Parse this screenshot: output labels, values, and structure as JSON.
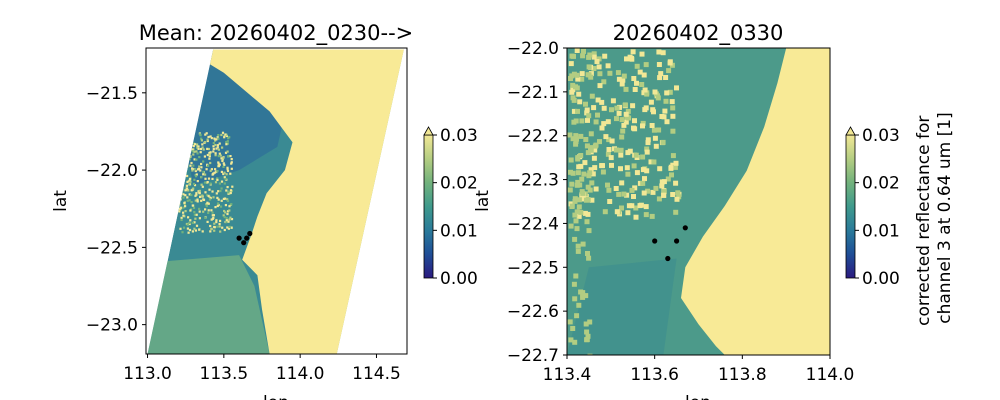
{
  "chart_data": [
    {
      "type": "heatmap",
      "title": "Mean: 20260402_0230-->",
      "xlabel": "lon",
      "ylabel": "lat",
      "xlim": [
        112.99,
        114.7
      ],
      "ylim": [
        -23.19,
        -21.21
      ],
      "xticks": [
        113.0,
        113.5,
        114.0,
        114.5
      ],
      "xtick_labels": [
        "113.0",
        "113.5",
        "114.0",
        "114.5"
      ],
      "yticks": [
        -21.5,
        -22.0,
        -22.5,
        -23.0
      ],
      "ytick_labels": [
        "−21.5",
        "−22.0",
        "−22.5",
        "−23.0"
      ],
      "swath_corners_lonlat": [
        [
          113.43,
          -21.22
        ],
        [
          114.68,
          -21.22
        ],
        [
          114.24,
          -23.19
        ],
        [
          113.0,
          -23.19
        ]
      ],
      "coast_lonlat": [
        [
          113.25,
          -21.22
        ],
        [
          113.5,
          -21.37
        ],
        [
          113.8,
          -21.62
        ],
        [
          113.95,
          -21.82
        ],
        [
          113.9,
          -22.0
        ],
        [
          113.78,
          -22.15
        ],
        [
          113.72,
          -22.3
        ],
        [
          113.68,
          -22.42
        ],
        [
          113.62,
          -22.58
        ],
        [
          113.72,
          -22.68
        ],
        [
          113.75,
          -22.9
        ],
        [
          113.8,
          -23.19
        ]
      ],
      "markers": [
        [
          113.6,
          -22.44
        ],
        [
          113.63,
          -22.47
        ],
        [
          113.65,
          -22.44
        ],
        [
          113.67,
          -22.41
        ]
      ],
      "colorbar": {
        "vmin": 0.0,
        "vmax": 0.03,
        "ticks": [
          "0.00",
          "0.01",
          "0.02",
          "0.03"
        ],
        "extend": "max",
        "label": ""
      }
    },
    {
      "type": "heatmap",
      "title": "20260402_0330",
      "xlabel": "lon",
      "ylabel": "lat",
      "xlim": [
        113.4,
        114.0
      ],
      "ylim": [
        -22.7,
        -22.0
      ],
      "xticks": [
        113.4,
        113.6,
        113.8,
        114.0
      ],
      "xtick_labels": [
        "113.4",
        "113.6",
        "113.8",
        "114.0"
      ],
      "yticks": [
        -22.0,
        -22.1,
        -22.2,
        -22.3,
        -22.4,
        -22.5,
        -22.6,
        -22.7
      ],
      "ytick_labels": [
        "−22.0",
        "−22.1",
        "−22.2",
        "−22.3",
        "−22.4",
        "−22.5",
        "−22.6",
        "−22.7"
      ],
      "coast_lonlat": [
        [
          113.9,
          -22.0
        ],
        [
          113.88,
          -22.08
        ],
        [
          113.85,
          -22.18
        ],
        [
          113.81,
          -22.28
        ],
        [
          113.76,
          -22.36
        ],
        [
          113.71,
          -22.43
        ],
        [
          113.67,
          -22.5
        ],
        [
          113.66,
          -22.57
        ],
        [
          113.7,
          -22.63
        ],
        [
          113.74,
          -22.68
        ],
        [
          113.76,
          -22.7
        ]
      ],
      "markers": [
        [
          113.6,
          -22.44
        ],
        [
          113.63,
          -22.48
        ],
        [
          113.65,
          -22.44
        ],
        [
          113.67,
          -22.41
        ]
      ],
      "colorbar": {
        "vmin": 0.0,
        "vmax": 0.03,
        "ticks": [
          "0.00",
          "0.01",
          "0.02",
          "0.03"
        ],
        "extend": "max",
        "label": "corrected reflectance for\nchannel 3 at 0.64 um [1]"
      }
    }
  ],
  "colors": {
    "land": "#f8ea96",
    "cmap": [
      "#2b1a80",
      "#1f4f97",
      "#2a7a9a",
      "#3f9a8c",
      "#73b27c",
      "#b3cd82",
      "#f2e896"
    ],
    "marker": "#000000"
  }
}
